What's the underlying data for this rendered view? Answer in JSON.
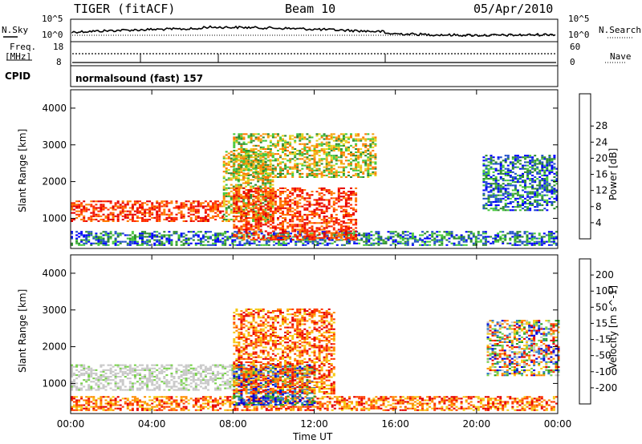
{
  "header": {
    "station": "TIGER (fitACF)",
    "beam": "Beam 10",
    "date": "05/Apr/2010"
  },
  "noise_panel": {
    "left_label": "N.Sky",
    "right_label": "N.Search",
    "left_ticks": [
      "10^5",
      "10^0"
    ],
    "right_ticks": [
      "10^5",
      "10^0"
    ]
  },
  "freq_panel": {
    "left_label_line1": "Freq.",
    "left_label_line2": "[MHz]",
    "right_label": "Nave",
    "left_ticks": [
      "18",
      "8"
    ],
    "right_ticks": [
      "60",
      "0"
    ]
  },
  "cpid_panel": {
    "label": "CPID",
    "program": "normalsound (fast) 157"
  },
  "chart_data": [
    {
      "type": "heatmap",
      "title": "",
      "xlabel": "Time UT",
      "ylabel": "Slant Range [km]",
      "xticks": [
        "00:00",
        "04:00",
        "08:00",
        "12:00",
        "16:00",
        "20:00",
        "00:00"
      ],
      "xlim_hours": [
        0,
        24
      ],
      "ylim": [
        180,
        4500
      ],
      "yticks": [
        "1000",
        "2000",
        "3000",
        "4000"
      ],
      "color_scale": {
        "label": "Power [dB]",
        "ticks": [
          "4",
          "8",
          "12",
          "16",
          "20",
          "24",
          "28"
        ],
        "colors": [
          "#0000ff",
          "#2050c8",
          "#2e8a2e",
          "#46c83c",
          "#e6d21e",
          "#f5a014",
          "#ff7800",
          "#ff2d00",
          "#e60000"
        ]
      },
      "features": [
        {
          "region": "near-range band",
          "t": [
            0,
            24
          ],
          "range_km": [
            250,
            650
          ],
          "level": "low"
        },
        {
          "region": "strong 1/2-hop echo",
          "t": [
            0,
            7.5
          ],
          "range_km": [
            900,
            1450
          ],
          "level": "high"
        },
        {
          "region": "rising echo",
          "t": [
            7.5,
            10
          ],
          "range_km": [
            900,
            2800
          ],
          "level": "mid"
        },
        {
          "region": "patchy echoes",
          "t": [
            8,
            14
          ],
          "range_km": [
            400,
            1800
          ],
          "level": "high"
        },
        {
          "region": "far-range echoes",
          "t": [
            8,
            15
          ],
          "range_km": [
            2100,
            3300
          ],
          "level": "mid"
        },
        {
          "region": "evening echoes",
          "t": [
            20.3,
            24
          ],
          "range_km": [
            1200,
            2700
          ],
          "level": "low"
        }
      ]
    },
    {
      "type": "heatmap",
      "title": "",
      "xlabel": "Time UT",
      "ylabel": "Slant Range [km]",
      "xticks": [
        "00:00",
        "04:00",
        "08:00",
        "12:00",
        "16:00",
        "20:00",
        "00:00"
      ],
      "xlim_hours": [
        0,
        24
      ],
      "ylim": [
        180,
        4500
      ],
      "yticks": [
        "1000",
        "2000",
        "3000",
        "4000"
      ],
      "color_scale": {
        "label": "Velocity [m s^-1]",
        "ticks": [
          "200",
          "100",
          "50",
          "15",
          "-15",
          "-50",
          "-100",
          "-200"
        ],
        "colors": [
          "#0000dc",
          "#2878c8",
          "#2aa02a",
          "#78d24a",
          "#c8c8c8",
          "#f5c814",
          "#ff8c00",
          "#ff3c00",
          "#e60000"
        ]
      },
      "features": [
        {
          "region": "ground scatter (grey)",
          "t": [
            0,
            8
          ],
          "range_km": [
            800,
            1500
          ],
          "level": "zero"
        },
        {
          "region": "near-range flows",
          "t": [
            0,
            24
          ],
          "range_km": [
            250,
            650
          ],
          "level": "negative"
        },
        {
          "region": "towards radar patches",
          "t": [
            8,
            12
          ],
          "range_km": [
            400,
            1500
          ],
          "level": "positive"
        },
        {
          "region": "away from radar",
          "t": [
            8,
            13
          ],
          "range_km": [
            700,
            3000
          ],
          "level": "negative"
        },
        {
          "region": "evening echoes",
          "t": [
            20.5,
            24
          ],
          "range_km": [
            1200,
            2700
          ],
          "level": "mixed"
        }
      ]
    }
  ]
}
